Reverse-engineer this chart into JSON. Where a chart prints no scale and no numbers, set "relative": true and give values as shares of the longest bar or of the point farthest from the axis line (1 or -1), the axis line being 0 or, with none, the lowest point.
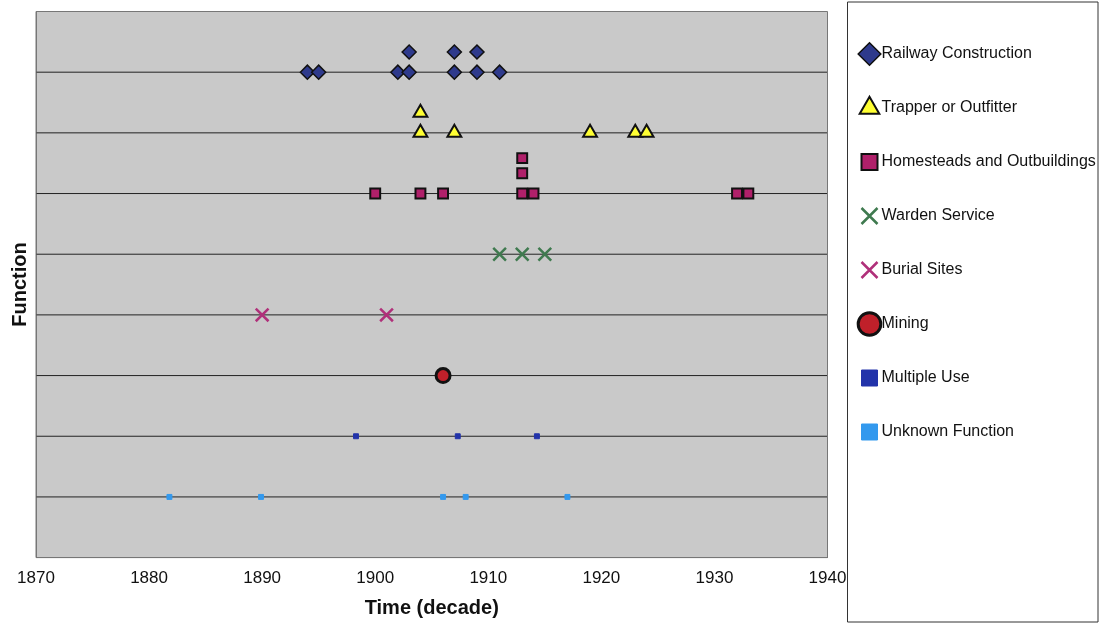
{
  "chart_data": {
    "type": "scatter",
    "xlabel": "Time (decade)",
    "ylabel": "Function",
    "xlim": [
      1870,
      1940
    ],
    "xticks": [
      1870,
      1880,
      1890,
      1900,
      1910,
      1920,
      1930,
      1940
    ],
    "relative": true,
    "legend": "right",
    "ref_lines": [
      {
        "axis": "y",
        "value": 0.96,
        "color": "#222222"
      },
      {
        "axis": "y",
        "value": 0.84,
        "color": "#222222"
      },
      {
        "axis": "y",
        "value": 0.72,
        "color": "#222222"
      },
      {
        "axis": "y",
        "value": 0.6,
        "color": "#222222"
      },
      {
        "axis": "y",
        "value": 0.48,
        "color": "#222222"
      },
      {
        "axis": "y",
        "value": 0.36,
        "color": "#222222"
      },
      {
        "axis": "y",
        "value": 0.24,
        "color": "#222222"
      },
      {
        "axis": "y",
        "value": 0.12,
        "color": "#222222"
      }
    ],
    "series": [
      {
        "name": "Railway Construction",
        "color": "#2e3a8c",
        "marker": "diamond",
        "x": [
          1894,
          1895,
          1902,
          1903,
          1903,
          1907,
          1907,
          1909,
          1909,
          1911
        ],
        "values": [
          0.96,
          0.96,
          0.96,
          0.96,
          1,
          0.96,
          1,
          0.96,
          1,
          0.96
        ]
      },
      {
        "name": "Trapper or Outfitter",
        "color": "#ffff33",
        "marker": "triangle",
        "x": [
          1904,
          1904,
          1907,
          1919,
          1923,
          1924
        ],
        "values": [
          0.84,
          0.88,
          0.84,
          0.84,
          0.84,
          0.84
        ]
      },
      {
        "name": "Homesteads and Outbuildings",
        "color": "#b0206a",
        "marker": "square",
        "x": [
          1900,
          1904,
          1906,
          1913,
          1913,
          1913,
          1914,
          1932,
          1933
        ],
        "values": [
          0.72,
          0.72,
          0.72,
          0.72,
          0.76,
          0.79,
          0.72,
          0.72,
          0.72
        ]
      },
      {
        "name": "Warden Service",
        "color": "#3f7a4f",
        "marker": "cross",
        "x": [
          1911,
          1913,
          1915
        ],
        "values": [
          0.6,
          0.6,
          0.6
        ]
      },
      {
        "name": "Burial Sites",
        "color": "#b0307a",
        "marker": "cross",
        "x": [
          1890,
          1901
        ],
        "values": [
          0.48,
          0.48
        ]
      },
      {
        "name": "Mining",
        "color": "#c0202a",
        "marker": "circle",
        "x": [
          1906
        ],
        "values": [
          0.36
        ]
      },
      {
        "name": "Multiple Use",
        "color": "#2233aa",
        "marker": "square",
        "x": [
          1898.3,
          1907.3,
          1914.3
        ],
        "values": [
          0.24,
          0.24,
          0.24
        ]
      },
      {
        "name": "Unknown Function",
        "color": "#3399ee",
        "marker": "square",
        "x": [
          1881.8,
          1889.9,
          1906,
          1908,
          1917
        ],
        "values": [
          0.12,
          0.12,
          0.12,
          0.12,
          0.12
        ]
      }
    ]
  }
}
